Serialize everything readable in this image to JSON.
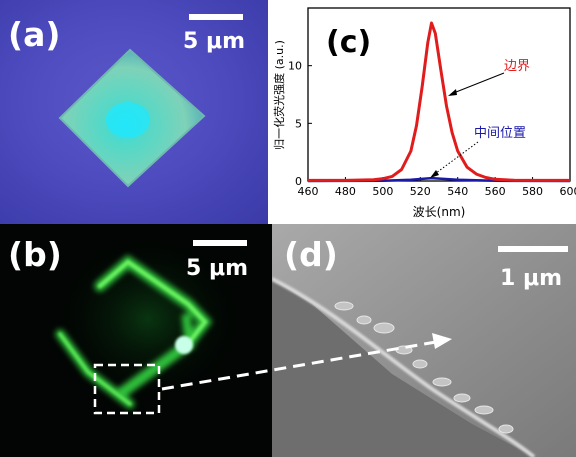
{
  "panels": {
    "a": {
      "label": "(a)",
      "scale_label": "5 μm"
    },
    "b": {
      "label": "(b)",
      "scale_label": "5 μm"
    },
    "c": {
      "label": "(c)"
    },
    "d": {
      "label": "(d)",
      "scale_label": "1 μm"
    }
  },
  "chart_data": {
    "type": "line",
    "xlabel": "波长(nm)",
    "ylabel": "归一化荧光强度 (a.u.)",
    "xlim": [
      460,
      600
    ],
    "ylim": [
      0,
      15
    ],
    "xticks": [
      460,
      480,
      500,
      520,
      540,
      560,
      580,
      600
    ],
    "yticks": [
      0,
      5,
      10
    ],
    "grid": false,
    "series": [
      {
        "name": "边界",
        "color": "#e01c1c",
        "x": [
          460,
          480,
          495,
          500,
          505,
          510,
          515,
          518,
          521,
          524,
          526,
          528,
          531,
          534,
          537,
          540,
          545,
          550,
          555,
          560,
          570,
          580,
          600
        ],
        "y": [
          0.05,
          0.05,
          0.1,
          0.2,
          0.4,
          1.0,
          2.6,
          4.8,
          8.2,
          12.0,
          13.7,
          12.8,
          9.6,
          6.5,
          4.2,
          2.6,
          1.2,
          0.6,
          0.3,
          0.15,
          0.06,
          0.05,
          0.05
        ]
      },
      {
        "name": "中间位置",
        "color": "#1a1aa8",
        "x": [
          460,
          500,
          515,
          526,
          540,
          560,
          600
        ],
        "y": [
          0.0,
          0.02,
          0.1,
          0.25,
          0.1,
          0.02,
          0.0
        ]
      }
    ]
  }
}
